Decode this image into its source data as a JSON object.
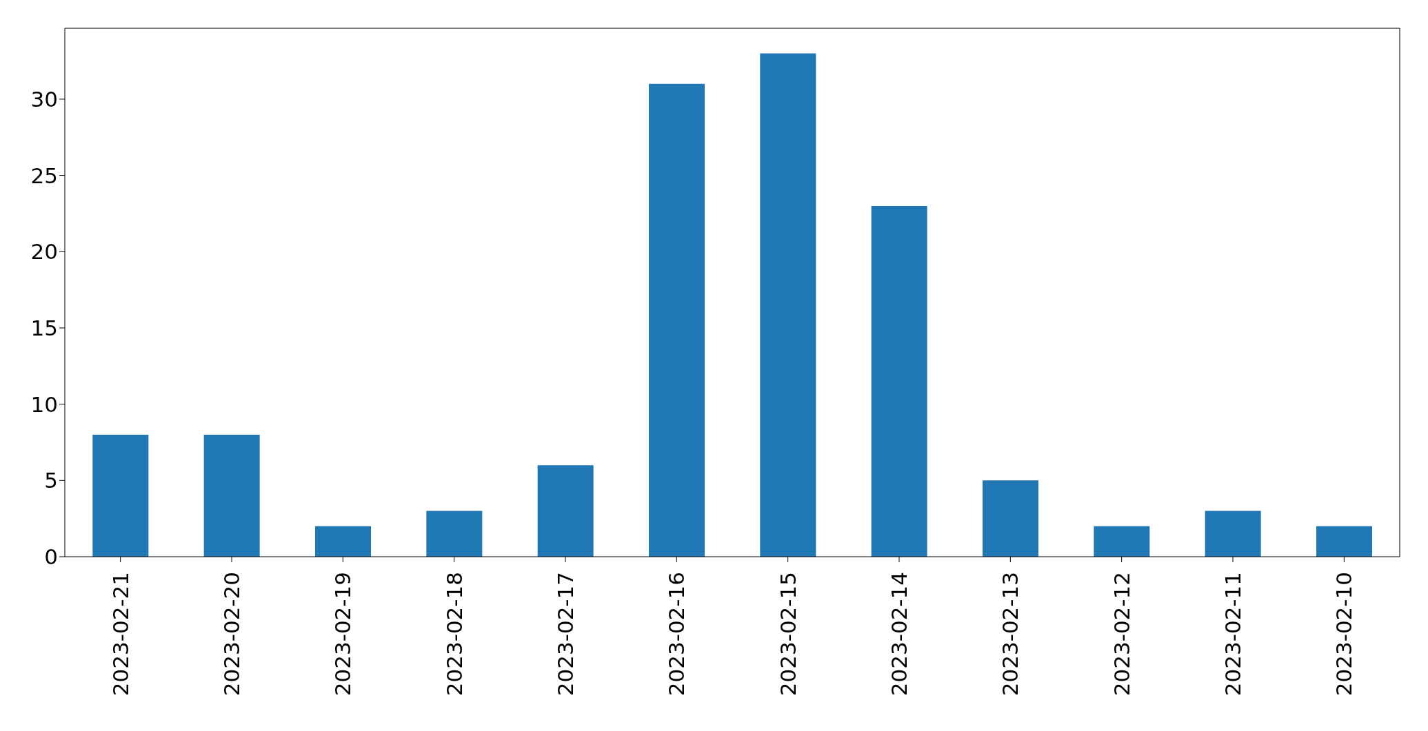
{
  "chart_data": {
    "type": "bar",
    "categories": [
      "2023-02-21",
      "2023-02-20",
      "2023-02-19",
      "2023-02-18",
      "2023-02-17",
      "2023-02-16",
      "2023-02-15",
      "2023-02-14",
      "2023-02-13",
      "2023-02-12",
      "2023-02-11",
      "2023-02-10"
    ],
    "values": [
      8,
      8,
      2,
      3,
      6,
      31,
      33,
      23,
      5,
      2,
      3,
      2
    ],
    "color": "#1f77b4",
    "ylim": [
      0,
      34.65
    ],
    "yticks": [
      0,
      5,
      10,
      15,
      20,
      25,
      30
    ]
  }
}
